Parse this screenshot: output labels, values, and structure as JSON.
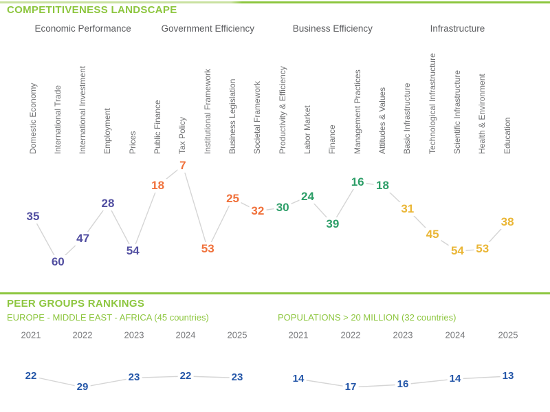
{
  "page": {
    "title": "COMPETITIVENESS LANDSCAPE"
  },
  "peer_section": {
    "heading": "PEER GROUPS RANKINGS"
  },
  "colors": {
    "accent_green": "#8dc63f",
    "header_gray": "#5b5c5f",
    "label_gray": "#6f7072",
    "line_gray": "#d5d5d5",
    "economic_purple": "#524fa1",
    "government_orange": "#f0713b",
    "business_green": "#2d9e68",
    "infrastructure_gold": "#eab636",
    "peer_blue": "#2456a8"
  },
  "chart_data": [
    {
      "type": "line",
      "title": "COMPETITIVENESS LANDSCAPE",
      "ylabel": "ranking (lower rank plotted higher)",
      "legend_position": "none",
      "grid": false,
      "groups": [
        {
          "label": "Economic Performance",
          "color": "#524fa1",
          "indicators": [
            {
              "label": "Domestic Economy",
              "value": 35
            },
            {
              "label": "International Trade",
              "value": 60
            },
            {
              "label": "International Investment",
              "value": 47
            },
            {
              "label": "Employment",
              "value": 28
            },
            {
              "label": "Prices",
              "value": 54
            }
          ]
        },
        {
          "label": "Government Efficiency",
          "color": "#f0713b",
          "indicators": [
            {
              "label": "Public Finance",
              "value": 18
            },
            {
              "label": "Tax Policy",
              "value": 7
            },
            {
              "label": "Institutional Framework",
              "value": 53
            },
            {
              "label": "Business Legislation",
              "value": 25
            },
            {
              "label": "Societal Framework",
              "value": 32
            }
          ]
        },
        {
          "label": "Business Efficiency",
          "color": "#2d9e68",
          "indicators": [
            {
              "label": "Productivity & Efficiency",
              "value": 30
            },
            {
              "label": "Labor Market",
              "value": 24
            },
            {
              "label": "Finance",
              "value": 39
            },
            {
              "label": "Management Practices",
              "value": 16
            },
            {
              "label": "Attitudes & Values",
              "value": 18
            }
          ]
        },
        {
          "label": "Infrastructure",
          "color": "#eab636",
          "indicators": [
            {
              "label": "Basic Infrastructure",
              "value": 31
            },
            {
              "label": "Technological Infrastructure",
              "value": 45
            },
            {
              "label": "Scientific Infrastructure",
              "value": 54
            },
            {
              "label": "Health & Environment",
              "value": 53
            },
            {
              "label": "Education",
              "value": 38
            }
          ]
        }
      ]
    },
    {
      "type": "line",
      "title": "EUROPE - MIDDLE EAST - AFRICA (45 countries)",
      "categories": [
        "2021",
        "2022",
        "2023",
        "2024",
        "2025"
      ],
      "values": [
        22,
        29,
        23,
        22,
        23
      ],
      "color": "#2456a8",
      "grid": false
    },
    {
      "type": "line",
      "title": "POPULATIONS > 20 MILLION (32 countries)",
      "categories": [
        "2021",
        "2022",
        "2023",
        "2024",
        "2025"
      ],
      "values": [
        14,
        17,
        16,
        14,
        13
      ],
      "color": "#2456a8",
      "grid": false
    }
  ]
}
